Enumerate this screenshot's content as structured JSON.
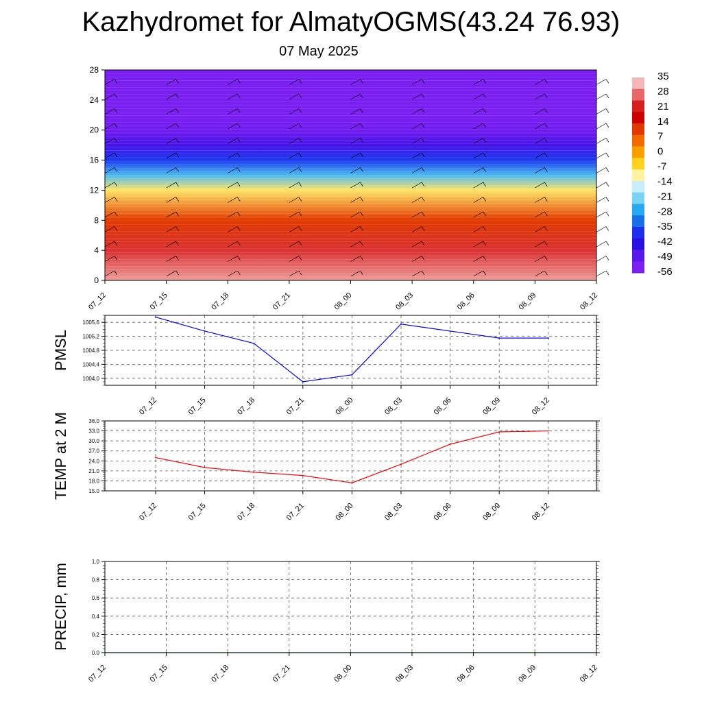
{
  "title": "Kazhydromet for AlmatyOGMS(43.24 76.93)",
  "subtitle": "07 May 2025",
  "colorbar": {
    "labels": [
      "35",
      "28",
      "21",
      "14",
      "7",
      "0",
      "-7",
      "-14",
      "-21",
      "-28",
      "-35",
      "-42",
      "-49",
      "-56"
    ],
    "colors": [
      "#f2b8b8",
      "#e86868",
      "#d62020",
      "#cc0000",
      "#e03800",
      "#f06a00",
      "#fb9e00",
      "#ffd21e",
      "#fff3a0",
      "#c8ecf8",
      "#7ad2f5",
      "#28a8ee",
      "#1870e8",
      "#1e2ef0",
      "#2a10e6",
      "#5818ea",
      "#7a1ef2"
    ]
  },
  "chart_data": [
    {
      "type": "heatmap",
      "x_ticks": [
        "07_12",
        "07_15",
        "07_18",
        "07_21",
        "08_00",
        "08_03",
        "08_06",
        "08_09",
        "08_12"
      ],
      "ylim": [
        0,
        28
      ],
      "y_ticks": [
        "0",
        "4",
        "8",
        "12",
        "16",
        "20",
        "24",
        "28"
      ],
      "value_range": [
        -56,
        35
      ],
      "profile": [
        {
          "level": 0,
          "value": 33
        },
        {
          "level": 4,
          "value": 25
        },
        {
          "level": 8,
          "value": 12
        },
        {
          "level": 12,
          "value": -8
        },
        {
          "level": 14,
          "value": -25
        },
        {
          "level": 16,
          "value": -38
        },
        {
          "level": 18,
          "value": -48
        },
        {
          "level": 20,
          "value": -55
        },
        {
          "level": 22,
          "value": -58
        },
        {
          "level": 28,
          "value": -60
        }
      ]
    },
    {
      "type": "line",
      "ylabel": "PMSL",
      "x": [
        "07_12",
        "07_15",
        "07_18",
        "07_21",
        "08_00",
        "08_03",
        "08_06",
        "08_09",
        "08_12"
      ],
      "y_ticks": [
        "1004.0",
        "1004.4",
        "1004.8",
        "1005.2",
        "1005.6"
      ],
      "ylim": [
        1003.8,
        1005.8
      ],
      "color": "#0000ff",
      "values": [
        1005.75,
        1005.35,
        1005.0,
        1003.9,
        1004.1,
        1005.55,
        1005.35,
        1005.15,
        1005.15
      ]
    },
    {
      "type": "line",
      "ylabel": "TEMP at 2 M",
      "x": [
        "07_12",
        "07_15",
        "07_18",
        "07_21",
        "08_00",
        "08_03",
        "08_06",
        "08_09",
        "08_12"
      ],
      "y_ticks": [
        "15.0",
        "18.0",
        "21.0",
        "24.0",
        "27.0",
        "30.0",
        "33.0",
        "36.0"
      ],
      "ylim": [
        15,
        36
      ],
      "color": "#ff0000",
      "values": [
        25.0,
        22.0,
        20.6,
        19.6,
        17.4,
        23.0,
        29.0,
        32.7,
        33.0
      ]
    },
    {
      "type": "line",
      "ylabel": "PRECIP, mm",
      "x": [
        "07_12",
        "07_15",
        "07_18",
        "07_21",
        "08_00",
        "08_03",
        "08_06",
        "08_09",
        "08_12"
      ],
      "y_ticks": [
        "0.0",
        "0.2",
        "0.4",
        "0.6",
        "0.8",
        "1.0"
      ],
      "ylim": [
        0,
        1
      ],
      "color": "#008000",
      "values": [
        0,
        0,
        0,
        0,
        0,
        0,
        0,
        0,
        0
      ]
    }
  ]
}
